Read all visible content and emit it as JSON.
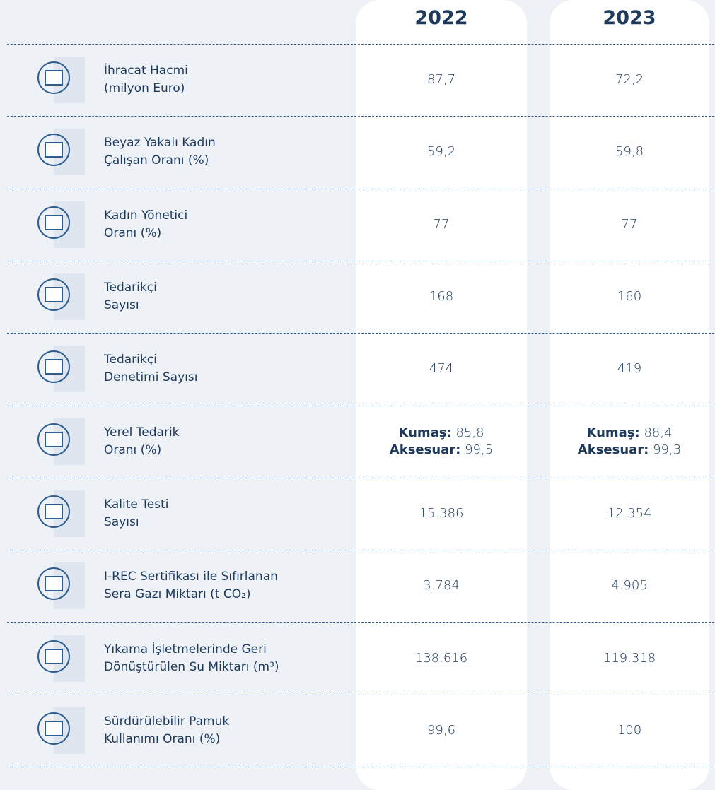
{
  "header": {
    "columns": [
      "2022",
      "2023"
    ]
  },
  "rows": [
    {
      "label": [
        "İhracat Hacmi",
        "(milyon Euro)"
      ],
      "values": [
        "87,7",
        "72,2"
      ]
    },
    {
      "label": [
        "Beyaz Yakalı Kadın",
        "Çalışan Oranı (%)"
      ],
      "values": [
        "59,2",
        "59,8"
      ]
    },
    {
      "label": [
        "Kadın Yönetici",
        "Oranı (%)"
      ],
      "values": [
        "77",
        "77"
      ]
    },
    {
      "label": [
        "Tedarikçi",
        "Sayısı"
      ],
      "values": [
        "168",
        "160"
      ]
    },
    {
      "label": [
        "Tedarikçi",
        "Denetimi Sayısı"
      ],
      "values": [
        "474",
        "419"
      ]
    },
    {
      "label": [
        "Yerel Tedarik",
        "Oranı (%)"
      ],
      "values": [
        [
          {
            "key": "Kumaş:",
            "value": "85,8"
          },
          {
            "key": "Aksesuar:",
            "value": "99,5"
          }
        ],
        [
          {
            "key": "Kumaş:",
            "value": "88,4"
          },
          {
            "key": "Aksesuar:",
            "value": "99,3"
          }
        ]
      ]
    },
    {
      "label": [
        "Kalite Testi",
        "Sayısı"
      ],
      "values": [
        "15.386",
        "12.354"
      ]
    },
    {
      "label": [
        "I-REC Sertifikası ile Sıfırlanan",
        "Sera Gazı Miktarı (t CO₂)"
      ],
      "values": [
        "3.784",
        "4.905"
      ]
    },
    {
      "label": [
        "Yıkama İşletmelerinde Geri",
        "Dönüştürülen Su Miktarı (m³)"
      ],
      "values": [
        "138.616",
        "119.318"
      ]
    },
    {
      "label": [
        "Sürdürülebilir Pamuk",
        "Kullanımı Oranı (%)"
      ],
      "values": [
        "99,6",
        "100"
      ]
    }
  ]
}
